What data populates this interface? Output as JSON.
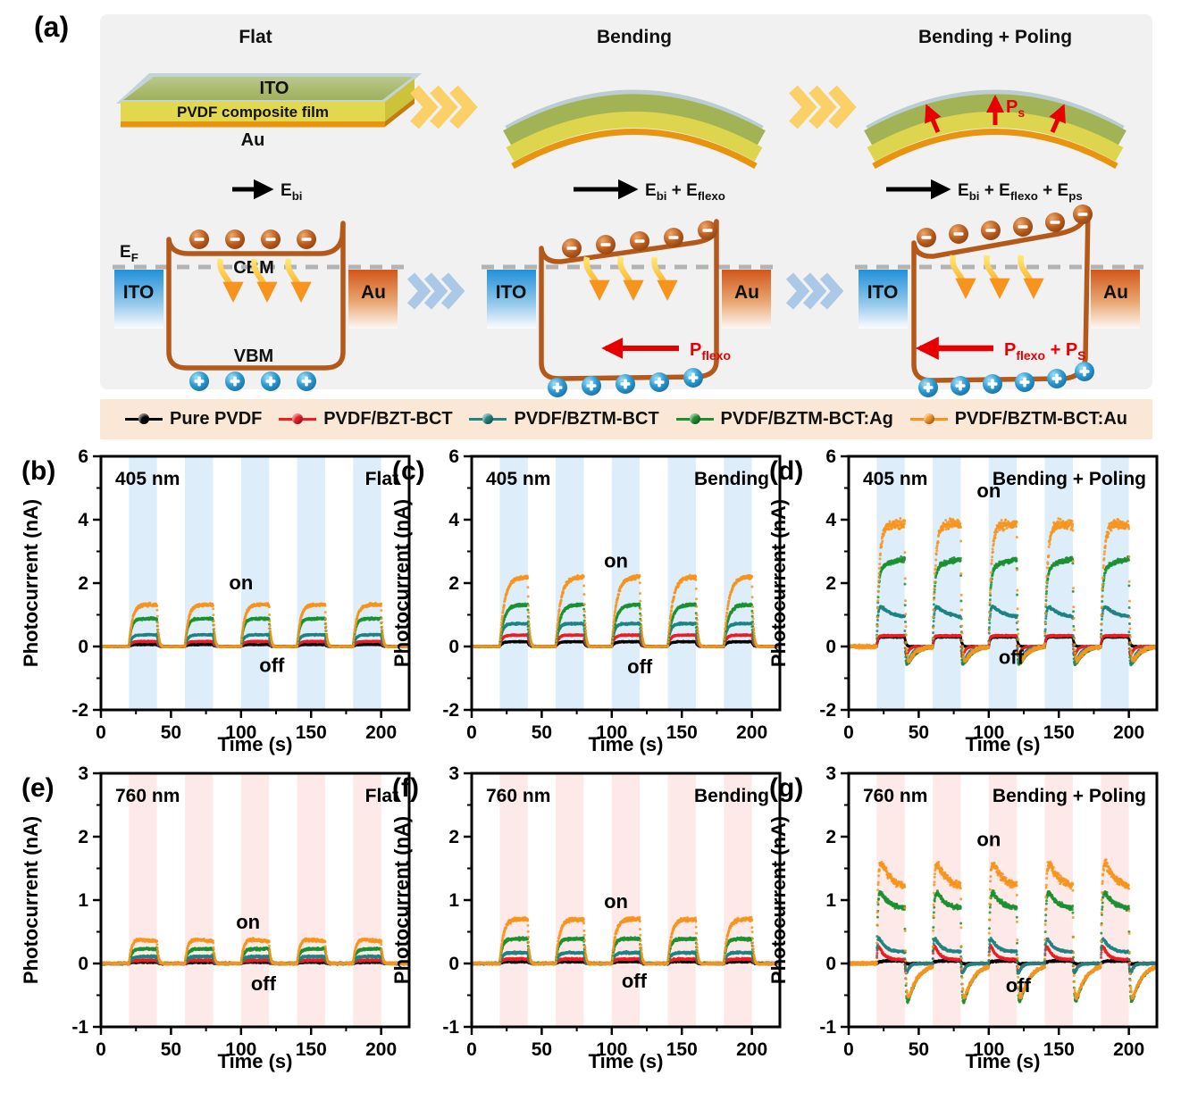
{
  "schematic": {
    "panel_label": "(a)",
    "stage_titles": [
      "Flat",
      "Bending",
      "Bending + Poling"
    ],
    "device_layers": {
      "top": "ITO",
      "middle": "PVDF composite film",
      "bottom": "Au"
    },
    "field_labels": [
      "E_bi",
      "E_bi + E_flexo",
      "E_bi + E_flexo + E_ps"
    ],
    "poling_polarization_label": "P_s",
    "band_diagrams": {
      "fermi_label": "E_F",
      "cbm_label": "CBM",
      "vbm_label": "VBM",
      "left_electrode": "ITO",
      "right_electrode": "Au",
      "polarization_labels": [
        "P_flexo",
        "P_flexo + P_S"
      ]
    },
    "colors": {
      "panel_bg": "#f1f1f2",
      "band_outline": "#b5591b",
      "red_arrow": "#e80000",
      "yellow_chevron": "#fbd067",
      "blue_chevron": "#abc9e7"
    }
  },
  "legend": {
    "background": "#fbe7d6",
    "items": [
      {
        "label": "Pure PVDF",
        "color": "#000000"
      },
      {
        "label": "PVDF/BZT-BCT",
        "color": "#ee1d23"
      },
      {
        "label": "PVDF/BZTM-BCT",
        "color": "#1f8482"
      },
      {
        "label": "PVDF/BZTM-BCT:Ag",
        "color": "#1b9032"
      },
      {
        "label": "PVDF/BZTM-BCT:Au",
        "color": "#f7941d"
      }
    ]
  },
  "chart_data": [
    {
      "id": "b",
      "panel": "(b)",
      "type": "scatter",
      "wavelength": "405 nm",
      "condition": "Flat",
      "xlabel": "Time (s)",
      "ylabel": "Photocurrent (nA)",
      "xlim": [
        0,
        220
      ],
      "ylim": [
        -2,
        6
      ],
      "xticks": [
        0,
        50,
        100,
        150,
        200
      ],
      "yticks": [
        -2,
        0,
        2,
        4,
        6
      ],
      "x_minor_step": 25,
      "y_minor_step": 1,
      "shade_color": "#ddeefa",
      "light_on_intervals": [
        [
          20,
          40
        ],
        [
          60,
          80
        ],
        [
          100,
          120
        ],
        [
          140,
          160
        ],
        [
          180,
          200
        ]
      ],
      "on_label": "on",
      "off_label": "off",
      "annotations": {
        "on": {
          "x": 100,
          "y": 1.8
        },
        "off": {
          "x": 122,
          "y": -0.8
        }
      },
      "series": [
        {
          "name": "Pure PVDF",
          "color": "#000000",
          "start": 0.06,
          "end": 0.06
        },
        {
          "name": "PVDF/BZT-BCT",
          "color": "#ee1d23",
          "start": 0.16,
          "end": 0.16
        },
        {
          "name": "PVDF/BZTM-BCT",
          "color": "#1f8482",
          "start": 0.37,
          "end": 0.34
        },
        {
          "name": "PVDF/BZTM-BCT:Ag",
          "color": "#1b9032",
          "start": 0.88,
          "end": 0.8,
          "undershoot": -0.05
        },
        {
          "name": "PVDF/BZTM-BCT:Au",
          "color": "#f7941d",
          "start": 1.32,
          "end": 1.16,
          "rise_tau": 2.4,
          "undershoot": -0.12,
          "recover_tau": 2.5
        }
      ]
    },
    {
      "id": "c",
      "panel": "(c)",
      "type": "scatter",
      "wavelength": "405 nm",
      "condition": "Bending",
      "xlabel": "Time (s)",
      "ylabel": "Photocurrent (nA)",
      "xlim": [
        0,
        220
      ],
      "ylim": [
        -2,
        6
      ],
      "xticks": [
        0,
        50,
        100,
        150,
        200
      ],
      "yticks": [
        -2,
        0,
        2,
        4,
        6
      ],
      "x_minor_step": 25,
      "y_minor_step": 1,
      "shade_color": "#ddeefa",
      "light_on_intervals": [
        [
          20,
          40
        ],
        [
          60,
          80
        ],
        [
          100,
          120
        ],
        [
          140,
          160
        ],
        [
          180,
          200
        ]
      ],
      "on_label": "on",
      "off_label": "off",
      "annotations": {
        "on": {
          "x": 103,
          "y": 2.5
        },
        "off": {
          "x": 120,
          "y": -0.85
        }
      },
      "series": [
        {
          "name": "Pure PVDF",
          "color": "#000000",
          "start": 0.15,
          "end": 0.14
        },
        {
          "name": "PVDF/BZT-BCT",
          "color": "#ee1d23",
          "start": 0.36,
          "end": 0.33
        },
        {
          "name": "PVDF/BZTM-BCT",
          "color": "#1f8482",
          "start": 0.72,
          "end": 0.65
        },
        {
          "name": "PVDF/BZTM-BCT:Ag",
          "color": "#1b9032",
          "start": 1.32,
          "end": 1.18,
          "rise_tau": 3,
          "undershoot": -0.08
        },
        {
          "name": "PVDF/BZTM-BCT:Au",
          "color": "#f7941d",
          "start": 2.2,
          "end": 2.0,
          "rise_tau": 3.4,
          "undershoot": -0.15,
          "recover_tau": 2.5
        }
      ]
    },
    {
      "id": "d",
      "panel": "(d)",
      "type": "scatter",
      "wavelength": "405 nm",
      "condition": "Bending + Poling",
      "xlabel": "Time (s)",
      "ylabel": "Photocurrent (nA)",
      "xlim": [
        0,
        220
      ],
      "ylim": [
        -2,
        6
      ],
      "xticks": [
        0,
        50,
        100,
        150,
        200
      ],
      "yticks": [
        -2,
        0,
        2,
        4,
        6
      ],
      "x_minor_step": 25,
      "y_minor_step": 1,
      "shade_color": "#ddeefa",
      "light_on_intervals": [
        [
          20,
          40
        ],
        [
          60,
          80
        ],
        [
          100,
          120
        ],
        [
          140,
          160
        ],
        [
          180,
          200
        ]
      ],
      "on_label": "on",
      "off_label": "off",
      "annotations": {
        "on": {
          "x": 100,
          "y": 4.7
        },
        "off": {
          "x": 116,
          "y": -0.55
        }
      },
      "series": [
        {
          "name": "Pure PVDF",
          "color": "#000000",
          "start": 0.3,
          "end": 0.3,
          "rise_tau": 0.8,
          "undershoot": -0.1,
          "recover_tau": 1.5
        },
        {
          "name": "PVDF/BZT-BCT",
          "color": "#ee1d23",
          "start": 0.34,
          "end": 0.24,
          "rise_tau": 0.7,
          "undershoot": -0.72,
          "fall_tau": 0.5,
          "recover_tau": 1.8
        },
        {
          "name": "PVDF/BZTM-BCT",
          "color": "#1f8482",
          "start": 1.45,
          "end": 0.9,
          "rise_tau": 0.8,
          "plateau_tau": 8,
          "undershoot": -1.02,
          "fall_tau": 0.5,
          "recover_tau": 3.5
        },
        {
          "name": "PVDF/BZTM-BCT:Ag",
          "color": "#1b9032",
          "start": 2.35,
          "end": 2.8,
          "rise_tau": 1,
          "plateau_tau": 9,
          "undershoot": -0.88,
          "fall_tau": 0.6,
          "recover_tau": 6
        },
        {
          "name": "PVDF/BZTM-BCT:Au",
          "color": "#f7941d",
          "start": 3.85,
          "end": 3.95,
          "rise_tau": 1.8,
          "undershoot": -0.92,
          "fall_tau": 0.7,
          "recover_tau": 5,
          "noise": 0.085
        }
      ]
    },
    {
      "id": "e",
      "panel": "(e)",
      "type": "scatter",
      "wavelength": "760 nm",
      "condition": "Flat",
      "xlabel": "Time (s)",
      "ylabel": "Photocurrent (nA)",
      "xlim": [
        0,
        220
      ],
      "ylim": [
        -1,
        3
      ],
      "xticks": [
        0,
        50,
        100,
        150,
        200
      ],
      "yticks": [
        -1,
        0,
        1,
        2,
        3
      ],
      "x_minor_step": 25,
      "y_minor_step": 0.5,
      "shade_color": "#fdeae8",
      "light_on_intervals": [
        [
          20,
          40
        ],
        [
          60,
          80
        ],
        [
          100,
          120
        ],
        [
          140,
          160
        ],
        [
          180,
          200
        ]
      ],
      "on_label": "on",
      "off_label": "off",
      "annotations": {
        "on": {
          "x": 105,
          "y": 0.55
        },
        "off": {
          "x": 116,
          "y": -0.42
        }
      },
      "series": [
        {
          "name": "Pure PVDF",
          "color": "#000000",
          "start": 0.02,
          "end": 0.02
        },
        {
          "name": "PVDF/BZT-BCT",
          "color": "#ee1d23",
          "start": 0.05,
          "end": 0.05
        },
        {
          "name": "PVDF/BZTM-BCT",
          "color": "#1f8482",
          "start": 0.11,
          "end": 0.1
        },
        {
          "name": "PVDF/BZTM-BCT:Ag",
          "color": "#1b9032",
          "start": 0.23,
          "end": 0.21
        },
        {
          "name": "PVDF/BZTM-BCT:Au",
          "color": "#f7941d",
          "start": 0.42,
          "end": 0.33,
          "plateau_tau": 14,
          "rise_tau": 2,
          "undershoot": -0.05
        }
      ]
    },
    {
      "id": "f",
      "panel": "(f)",
      "type": "scatter",
      "wavelength": "760 nm",
      "condition": "Bending",
      "xlabel": "Time (s)",
      "ylabel": "Photocurrent (nA)",
      "xlim": [
        0,
        220
      ],
      "ylim": [
        -1,
        3
      ],
      "xticks": [
        0,
        50,
        100,
        150,
        200
      ],
      "yticks": [
        -1,
        0,
        1,
        2,
        3
      ],
      "x_minor_step": 25,
      "y_minor_step": 0.5,
      "shade_color": "#fdeae8",
      "light_on_intervals": [
        [
          20,
          40
        ],
        [
          60,
          80
        ],
        [
          100,
          120
        ],
        [
          140,
          160
        ],
        [
          180,
          200
        ]
      ],
      "on_label": "on",
      "off_label": "off",
      "annotations": {
        "on": {
          "x": 103,
          "y": 0.87
        },
        "off": {
          "x": 116,
          "y": -0.38
        }
      },
      "series": [
        {
          "name": "Pure PVDF",
          "color": "#000000",
          "start": 0.03,
          "end": 0.03
        },
        {
          "name": "PVDF/BZT-BCT",
          "color": "#ee1d23",
          "start": 0.07,
          "end": 0.07
        },
        {
          "name": "PVDF/BZTM-BCT",
          "color": "#1f8482",
          "start": 0.17,
          "end": 0.15
        },
        {
          "name": "PVDF/BZTM-BCT:Ag",
          "color": "#1b9032",
          "start": 0.39,
          "end": 0.33,
          "undershoot": -0.05
        },
        {
          "name": "PVDF/BZTM-BCT:Au",
          "color": "#f7941d",
          "start": 0.7,
          "end": 0.6,
          "rise_tau": 2.6,
          "undershoot": -0.08,
          "recover_tau": 2.5
        }
      ]
    },
    {
      "id": "g",
      "panel": "(g)",
      "type": "scatter",
      "wavelength": "760 nm",
      "condition": "Bending + Poling",
      "xlabel": "Time (s)",
      "ylabel": "Photocurrent (nA)",
      "xlim": [
        0,
        220
      ],
      "ylim": [
        -1,
        3
      ],
      "xticks": [
        0,
        50,
        100,
        150,
        200
      ],
      "yticks": [
        -1,
        0,
        1,
        2,
        3
      ],
      "x_minor_step": 25,
      "y_minor_step": 0.5,
      "shade_color": "#fdeae8",
      "light_on_intervals": [
        [
          20,
          40
        ],
        [
          60,
          80
        ],
        [
          100,
          120
        ],
        [
          140,
          160
        ],
        [
          180,
          200
        ]
      ],
      "on_label": "on",
      "off_label": "off",
      "annotations": {
        "on": {
          "x": 100,
          "y": 1.85
        },
        "off": {
          "x": 121,
          "y": -0.45
        }
      },
      "series": [
        {
          "name": "Pure PVDF",
          "color": "#000000",
          "start": 0.04,
          "end": 0.02,
          "undershoot": -0.05
        },
        {
          "name": "PVDF/BZT-BCT",
          "color": "#ee1d23",
          "start": 0.42,
          "end": 0.06,
          "rise_tau": 0.6,
          "plateau_tau": 3.5,
          "undershoot": -0.33,
          "fall_tau": 0.5,
          "recover_tau": 2
        },
        {
          "name": "PVDF/BZTM-BCT",
          "color": "#1f8482",
          "start": 0.52,
          "end": 0.18,
          "rise_tau": 0.6,
          "plateau_tau": 4.5,
          "undershoot": -0.36,
          "fall_tau": 0.5,
          "recover_tau": 2
        },
        {
          "name": "PVDF/BZTM-BCT:Ag",
          "color": "#1b9032",
          "start": 1.32,
          "end": 0.86,
          "rise_tau": 0.8,
          "plateau_tau": 6,
          "undershoot": -0.88,
          "fall_tau": 0.6,
          "recover_tau": 7
        },
        {
          "name": "PVDF/BZTM-BCT:Au",
          "color": "#f7941d",
          "start": 1.88,
          "end": 1.2,
          "rise_tau": 0.9,
          "plateau_tau": 6.5,
          "undershoot": -0.84,
          "fall_tau": 0.7,
          "recover_tau": 7,
          "noise": 0.04
        }
      ]
    }
  ]
}
